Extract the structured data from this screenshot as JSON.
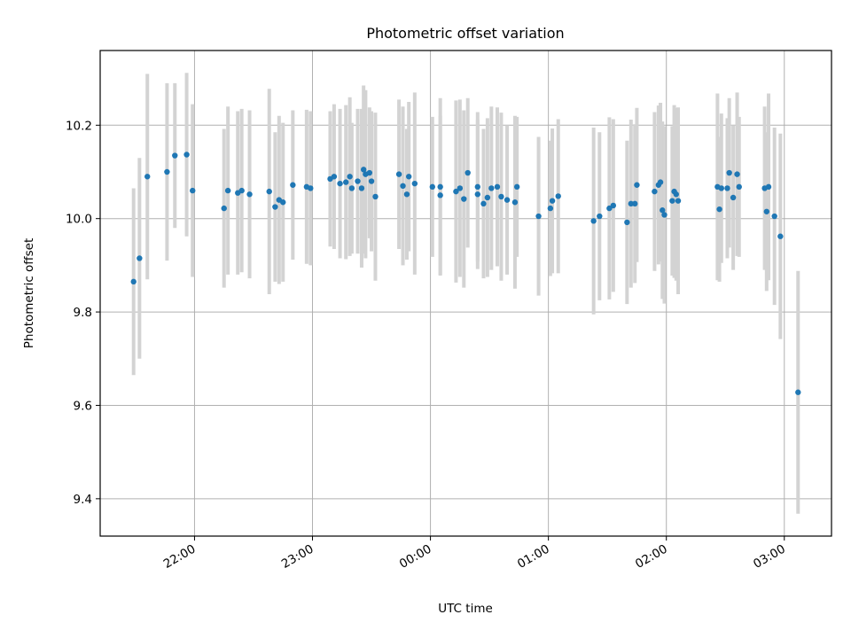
{
  "chart_data": {
    "type": "scatter",
    "title": "Photometric offset variation",
    "xlabel": "UTC time",
    "ylabel": "Photometric offset",
    "x_axis": "time",
    "y_ticks": [
      9.4,
      9.6,
      9.8,
      10.0,
      10.2
    ],
    "x_ticks": [
      "22:00",
      "23:00",
      "00:00",
      "01:00",
      "02:00",
      "03:00"
    ],
    "xlim": [
      "21:12",
      "03:24"
    ],
    "ylim": [
      9.32,
      10.36
    ],
    "grid": true,
    "marker_color": "#1f77b4",
    "errorbar_color": "#d3d3d3",
    "series": [
      {
        "points": [
          {
            "t": "21:29",
            "y": 9.865,
            "e": 0.2
          },
          {
            "t": "21:32",
            "y": 9.915,
            "e": 0.215
          },
          {
            "t": "21:36",
            "y": 10.09,
            "e": 0.22
          },
          {
            "t": "21:46",
            "y": 10.1,
            "e": 0.19
          },
          {
            "t": "21:50",
            "y": 10.135,
            "e": 0.155
          },
          {
            "t": "21:56",
            "y": 10.137,
            "e": 0.175
          },
          {
            "t": "21:59",
            "y": 10.06,
            "e": 0.185
          },
          {
            "t": "22:15",
            "y": 10.022,
            "e": 0.17
          },
          {
            "t": "22:17",
            "y": 10.06,
            "e": 0.18
          },
          {
            "t": "22:22",
            "y": 10.055,
            "e": 0.175
          },
          {
            "t": "22:24",
            "y": 10.06,
            "e": 0.175
          },
          {
            "t": "22:28",
            "y": 10.052,
            "e": 0.18
          },
          {
            "t": "22:38",
            "y": 10.058,
            "e": 0.22
          },
          {
            "t": "22:41",
            "y": 10.025,
            "e": 0.16
          },
          {
            "t": "22:43",
            "y": 10.04,
            "e": 0.18
          },
          {
            "t": "22:45",
            "y": 10.035,
            "e": 0.17
          },
          {
            "t": "22:50",
            "y": 10.072,
            "e": 0.16
          },
          {
            "t": "22:57",
            "y": 10.068,
            "e": 0.165
          },
          {
            "t": "22:59",
            "y": 10.065,
            "e": 0.165
          },
          {
            "t": "23:09",
            "y": 10.085,
            "e": 0.145
          },
          {
            "t": "23:11",
            "y": 10.09,
            "e": 0.155
          },
          {
            "t": "23:14",
            "y": 10.075,
            "e": 0.16
          },
          {
            "t": "23:17",
            "y": 10.078,
            "e": 0.165
          },
          {
            "t": "23:19",
            "y": 10.09,
            "e": 0.17
          },
          {
            "t": "23:20",
            "y": 10.065,
            "e": 0.14
          },
          {
            "t": "23:23",
            "y": 10.08,
            "e": 0.155
          },
          {
            "t": "23:25",
            "y": 10.065,
            "e": 0.17
          },
          {
            "t": "23:26",
            "y": 10.105,
            "e": 0.18
          },
          {
            "t": "23:27",
            "y": 10.095,
            "e": 0.18
          },
          {
            "t": "23:29",
            "y": 10.098,
            "e": 0.14
          },
          {
            "t": "23:30",
            "y": 10.08,
            "e": 0.15
          },
          {
            "t": "23:32",
            "y": 10.047,
            "e": 0.18
          },
          {
            "t": "23:44",
            "y": 10.095,
            "e": 0.16
          },
          {
            "t": "23:46",
            "y": 10.07,
            "e": 0.17
          },
          {
            "t": "23:48",
            "y": 10.052,
            "e": 0.14
          },
          {
            "t": "23:49",
            "y": 10.09,
            "e": 0.16
          },
          {
            "t": "23:52",
            "y": 10.075,
            "e": 0.195
          },
          {
            "t": "00:01",
            "y": 10.068,
            "e": 0.15
          },
          {
            "t": "00:05",
            "y": 10.068,
            "e": 0.19
          },
          {
            "t": "00:05",
            "y": 10.05,
            "e": 0.17
          },
          {
            "t": "00:13",
            "y": 10.058,
            "e": 0.195
          },
          {
            "t": "00:15",
            "y": 10.065,
            "e": 0.19
          },
          {
            "t": "00:17",
            "y": 10.042,
            "e": 0.19
          },
          {
            "t": "00:19",
            "y": 10.098,
            "e": 0.16
          },
          {
            "t": "00:24",
            "y": 10.052,
            "e": 0.16
          },
          {
            "t": "00:24",
            "y": 10.068,
            "e": 0.16
          },
          {
            "t": "00:27",
            "y": 10.032,
            "e": 0.16
          },
          {
            "t": "00:29",
            "y": 10.045,
            "e": 0.17
          },
          {
            "t": "00:31",
            "y": 10.065,
            "e": 0.175
          },
          {
            "t": "00:34",
            "y": 10.068,
            "e": 0.17
          },
          {
            "t": "00:36",
            "y": 10.047,
            "e": 0.18
          },
          {
            "t": "00:39",
            "y": 10.04,
            "e": 0.16
          },
          {
            "t": "00:43",
            "y": 10.035,
            "e": 0.185
          },
          {
            "t": "00:44",
            "y": 10.068,
            "e": 0.15
          },
          {
            "t": "00:55",
            "y": 10.005,
            "e": 0.17
          },
          {
            "t": "01:01",
            "y": 10.022,
            "e": 0.145
          },
          {
            "t": "01:02",
            "y": 10.038,
            "e": 0.155
          },
          {
            "t": "01:05",
            "y": 10.048,
            "e": 0.165
          },
          {
            "t": "01:23",
            "y": 9.995,
            "e": 0.2
          },
          {
            "t": "01:26",
            "y": 10.005,
            "e": 0.18
          },
          {
            "t": "01:31",
            "y": 10.022,
            "e": 0.195
          },
          {
            "t": "01:33",
            "y": 10.028,
            "e": 0.185
          },
          {
            "t": "01:40",
            "y": 9.992,
            "e": 0.175
          },
          {
            "t": "01:42",
            "y": 10.032,
            "e": 0.18
          },
          {
            "t": "01:44",
            "y": 10.032,
            "e": 0.17
          },
          {
            "t": "01:45",
            "y": 10.072,
            "e": 0.165
          },
          {
            "t": "01:54",
            "y": 10.058,
            "e": 0.17
          },
          {
            "t": "01:56",
            "y": 10.072,
            "e": 0.17
          },
          {
            "t": "01:57",
            "y": 10.078,
            "e": 0.17
          },
          {
            "t": "01:58",
            "y": 10.018,
            "e": 0.19
          },
          {
            "t": "01:59",
            "y": 10.008,
            "e": 0.19
          },
          {
            "t": "02:03",
            "y": 10.038,
            "e": 0.16
          },
          {
            "t": "02:04",
            "y": 10.058,
            "e": 0.185
          },
          {
            "t": "02:05",
            "y": 10.052,
            "e": 0.185
          },
          {
            "t": "02:06",
            "y": 10.038,
            "e": 0.2
          },
          {
            "t": "02:26",
            "y": 10.068,
            "e": 0.2
          },
          {
            "t": "02:27",
            "y": 10.02,
            "e": 0.155
          },
          {
            "t": "02:28",
            "y": 10.065,
            "e": 0.16
          },
          {
            "t": "02:31",
            "y": 10.065,
            "e": 0.15
          },
          {
            "t": "02:32",
            "y": 10.098,
            "e": 0.16
          },
          {
            "t": "02:34",
            "y": 10.045,
            "e": 0.155
          },
          {
            "t": "02:36",
            "y": 10.095,
            "e": 0.175
          },
          {
            "t": "02:37",
            "y": 10.068,
            "e": 0.15
          },
          {
            "t": "02:50",
            "y": 10.065,
            "e": 0.175
          },
          {
            "t": "02:51",
            "y": 10.015,
            "e": 0.17
          },
          {
            "t": "02:52",
            "y": 10.068,
            "e": 0.2
          },
          {
            "t": "02:55",
            "y": 10.005,
            "e": 0.19
          },
          {
            "t": "02:58",
            "y": 9.962,
            "e": 0.22
          },
          {
            "t": "03:07",
            "y": 9.628,
            "e": 0.26
          }
        ]
      }
    ]
  }
}
